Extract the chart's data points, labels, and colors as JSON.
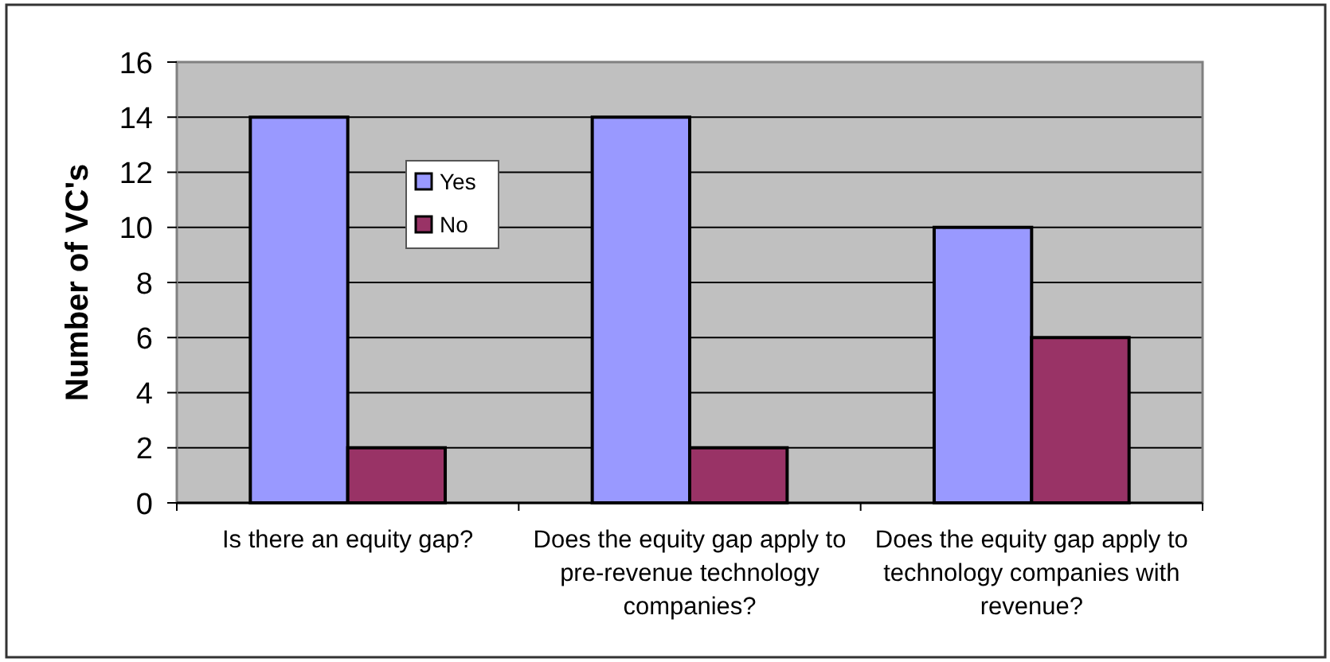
{
  "chart_data": {
    "type": "bar",
    "ylabel": "Number of VC's",
    "categories": [
      "Is there an equity gap?",
      "Does the equity gap apply to pre-revenue technology companies?",
      "Does the equity gap apply to technology companies with revenue?"
    ],
    "series": [
      {
        "name": "Yes",
        "color": "#9999ff",
        "values": [
          14,
          14,
          10
        ]
      },
      {
        "name": "No",
        "color": "#993366",
        "values": [
          2,
          2,
          6
        ]
      }
    ],
    "ylim": [
      0,
      16
    ],
    "yticks": [
      0,
      2,
      4,
      6,
      8,
      10,
      12,
      14,
      16
    ],
    "grid": "y",
    "legend": "top left"
  }
}
